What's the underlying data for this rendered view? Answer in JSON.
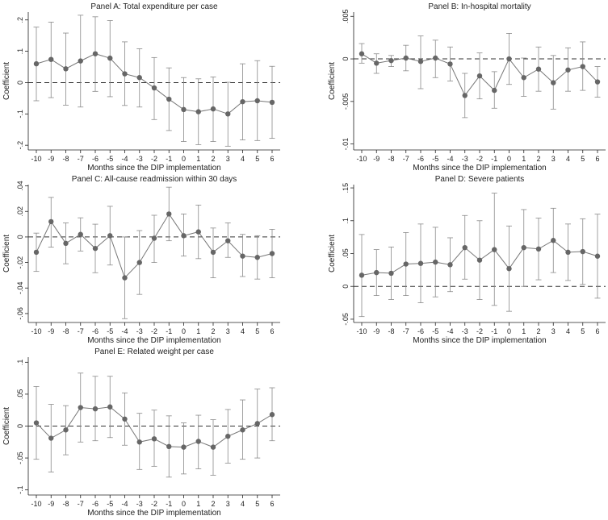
{
  "chart_data": [
    {
      "type": "scatter",
      "title": "Panel A: Total expenditure per case",
      "xlabel": "Months since the DIP implementation",
      "ylabel": "Coefficient",
      "x": [
        -10,
        -9,
        -8,
        -7,
        -6,
        -5,
        -4,
        -3,
        -2,
        -1,
        0,
        1,
        2,
        3,
        4,
        5,
        6
      ],
      "x_tick_labels": [
        "-10",
        "-9",
        "-8",
        "-7",
        "-6",
        "-5",
        "-4",
        "-3",
        "-2",
        "-1",
        "0",
        "1",
        "2",
        "3",
        "4",
        "5",
        "6"
      ],
      "y_ticks": [
        -0.2,
        -0.1,
        0,
        0.1,
        0.2
      ],
      "y_tick_labels": [
        "-.2",
        "-.1",
        "0",
        ".1",
        ".2"
      ],
      "ylim": [
        -0.215,
        0.225
      ],
      "reference_line_y": 0,
      "grid": false,
      "series": [
        {
          "values": [
            0.06,
            0.074,
            0.044,
            0.069,
            0.092,
            0.078,
            0.028,
            0.016,
            -0.017,
            -0.053,
            -0.086,
            -0.093,
            -0.084,
            -0.1,
            -0.061,
            -0.058,
            -0.063
          ],
          "ci_low": [
            -0.058,
            -0.048,
            -0.072,
            -0.078,
            -0.028,
            -0.045,
            -0.073,
            -0.078,
            -0.118,
            -0.153,
            -0.188,
            -0.198,
            -0.188,
            -0.203,
            -0.183,
            -0.185,
            -0.178
          ],
          "ci_high": [
            0.177,
            0.193,
            0.158,
            0.215,
            0.21,
            0.198,
            0.13,
            0.108,
            0.08,
            0.047,
            0.016,
            0.012,
            0.018,
            0.001,
            0.06,
            0.07,
            0.052
          ]
        }
      ]
    },
    {
      "type": "scatter",
      "title": "Panel B: In-hospital mortality",
      "xlabel": "Months since the DIP implementation",
      "ylabel": "Coefficient",
      "x": [
        -10,
        -9,
        -8,
        -7,
        -6,
        -5,
        -4,
        -3,
        -2,
        -1,
        0,
        1,
        2,
        3,
        4,
        5,
        6
      ],
      "x_tick_labels": [
        "-10",
        "-9",
        "-8",
        "-7",
        "-6",
        "-5",
        "-4",
        "-3",
        "-2",
        "-1",
        "0",
        "1",
        "2",
        "3",
        "4",
        "5",
        "6"
      ],
      "y_ticks": [
        -0.01,
        -0.005,
        0,
        0.005
      ],
      "y_tick_labels": [
        "-.01",
        "-.005",
        "0",
        ".005"
      ],
      "ylim": [
        -0.0107,
        0.0055
      ],
      "reference_line_y": 0,
      "grid": false,
      "series": [
        {
          "values": [
            0.0006,
            -0.0005,
            -0.0002,
            0.0001,
            -0.0003,
            0.0001,
            -0.0006,
            -0.0043,
            -0.002,
            -0.0037,
            0.0,
            -0.0022,
            -0.0012,
            -0.0028,
            -0.0013,
            -0.0009,
            -0.0027
          ],
          "ci_low": [
            -0.0005,
            -0.0017,
            -0.0009,
            -0.0014,
            -0.0035,
            -0.0022,
            -0.0026,
            -0.0069,
            -0.0047,
            -0.0058,
            -0.003,
            -0.0044,
            -0.0038,
            -0.0059,
            -0.0038,
            -0.0037,
            -0.0045
          ],
          "ci_high": [
            0.0018,
            0.0006,
            0.0004,
            0.0016,
            0.0027,
            0.0022,
            0.0014,
            -0.0017,
            0.0007,
            -0.0015,
            0.003,
            0.0001,
            0.0014,
            0.0004,
            0.0013,
            0.002,
            -0.0009
          ]
        }
      ]
    },
    {
      "type": "scatter",
      "title": "Panel C: All-cause readmission within 30 days",
      "xlabel": "Months since the DIP implementation",
      "ylabel": "Coefficient",
      "x": [
        -10,
        -9,
        -8,
        -7,
        -6,
        -5,
        -4,
        -3,
        -2,
        -1,
        0,
        1,
        2,
        3,
        4,
        5,
        6
      ],
      "x_tick_labels": [
        "-10",
        "-9",
        "-8",
        "-7",
        "-6",
        "-5",
        "-4",
        "-3",
        "-2",
        "-1",
        "0",
        "1",
        "2",
        "3",
        "4",
        "5",
        "6"
      ],
      "y_ticks": [
        -0.06,
        -0.04,
        -0.02,
        0,
        0.02,
        0.04
      ],
      "y_tick_labels": [
        "-.06",
        "-.04",
        "-.02",
        "0",
        ".02",
        ".04"
      ],
      "ylim": [
        -0.067,
        0.041
      ],
      "reference_line_y": 0,
      "grid": false,
      "series": [
        {
          "values": [
            -0.012,
            0.012,
            -0.005,
            0.002,
            -0.009,
            0.001,
            -0.032,
            -0.02,
            -0.001,
            0.018,
            0.001,
            0.004,
            -0.012,
            -0.003,
            -0.015,
            -0.016,
            -0.013
          ],
          "ci_low": [
            -0.027,
            -0.008,
            -0.021,
            -0.011,
            -0.028,
            -0.022,
            -0.064,
            -0.045,
            -0.02,
            -0.003,
            -0.015,
            -0.017,
            -0.032,
            -0.016,
            -0.031,
            -0.033,
            -0.032
          ],
          "ci_high": [
            0.003,
            0.031,
            0.011,
            0.015,
            0.01,
            0.024,
            0.0,
            0.005,
            0.017,
            0.039,
            0.018,
            0.025,
            0.007,
            0.011,
            0.002,
            0.001,
            0.006
          ]
        }
      ]
    },
    {
      "type": "scatter",
      "title": "Panel D: Severe patients",
      "xlabel": "Months since the DIP implementation",
      "ylabel": "Coefficient",
      "x": [
        -10,
        -9,
        -8,
        -7,
        -6,
        -5,
        -4,
        -3,
        -2,
        -1,
        0,
        1,
        2,
        3,
        4,
        5,
        6
      ],
      "x_tick_labels": [
        "-10",
        "-9",
        "-8",
        "-7",
        "-6",
        "-5",
        "-4",
        "-3",
        "-2",
        "-1",
        "0",
        "1",
        "2",
        "3",
        "4",
        "5",
        "6"
      ],
      "y_ticks": [
        -0.05,
        0,
        0.05,
        0.1,
        0.15
      ],
      "y_tick_labels": [
        "-.05",
        "0",
        ".05",
        ".1",
        ".15"
      ],
      "ylim": [
        -0.055,
        0.155
      ],
      "reference_line_y": 0,
      "grid": false,
      "series": [
        {
          "values": [
            0.017,
            0.021,
            0.02,
            0.034,
            0.035,
            0.037,
            0.033,
            0.059,
            0.04,
            0.056,
            0.027,
            0.059,
            0.057,
            0.07,
            0.052,
            0.053,
            0.046
          ],
          "ci_low": [
            -0.046,
            -0.014,
            -0.02,
            -0.014,
            -0.025,
            -0.016,
            -0.008,
            0.011,
            -0.02,
            -0.029,
            -0.038,
            0.0,
            0.01,
            0.021,
            0.009,
            0.003,
            -0.018
          ],
          "ci_high": [
            0.079,
            0.056,
            0.06,
            0.082,
            0.095,
            0.09,
            0.074,
            0.108,
            0.1,
            0.142,
            0.092,
            0.117,
            0.104,
            0.119,
            0.095,
            0.103,
            0.11
          ]
        }
      ]
    },
    {
      "type": "scatter",
      "title": "Panel E: Related weight per case",
      "xlabel": "Months since the DIP implementation",
      "ylabel": "Coefficient",
      "x": [
        -10,
        -9,
        -8,
        -7,
        -6,
        -5,
        -4,
        -3,
        -2,
        -1,
        0,
        1,
        2,
        3,
        4,
        5,
        6
      ],
      "x_tick_labels": [
        "-10",
        "-9",
        "-8",
        "-7",
        "-6",
        "-5",
        "-4",
        "-3",
        "-2",
        "-1",
        "0",
        "1",
        "2",
        "3",
        "4",
        "5",
        "6"
      ],
      "y_ticks": [
        -0.1,
        -0.05,
        0,
        0.05,
        0.1
      ],
      "y_tick_labels": [
        "-.1",
        "-.05",
        "0",
        ".05",
        ".1"
      ],
      "ylim": [
        -0.108,
        0.108
      ],
      "reference_line_y": 0,
      "grid": false,
      "series": [
        {
          "values": [
            0.005,
            -0.019,
            -0.006,
            0.029,
            0.027,
            0.03,
            0.011,
            -0.025,
            -0.02,
            -0.032,
            -0.033,
            -0.024,
            -0.033,
            -0.016,
            -0.006,
            0.004,
            0.018
          ],
          "ci_low": [
            -0.052,
            -0.072,
            -0.045,
            -0.025,
            -0.023,
            -0.018,
            -0.03,
            -0.068,
            -0.063,
            -0.08,
            -0.075,
            -0.067,
            -0.077,
            -0.058,
            -0.052,
            -0.05,
            -0.023
          ],
          "ci_high": [
            0.062,
            0.034,
            0.032,
            0.083,
            0.078,
            0.078,
            0.052,
            0.02,
            0.025,
            0.016,
            0.005,
            0.017,
            0.01,
            0.026,
            0.041,
            0.058,
            0.06
          ]
        }
      ]
    }
  ]
}
